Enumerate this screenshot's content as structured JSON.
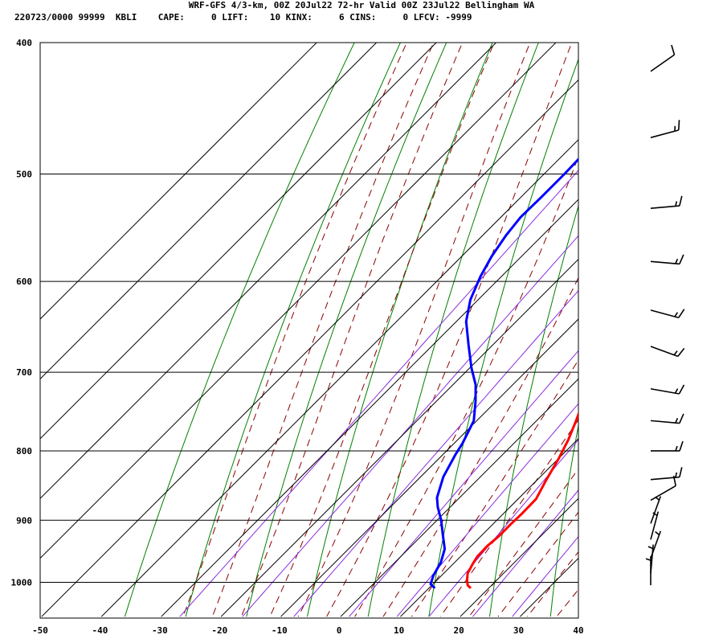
{
  "header": {
    "title_line1": "WRF-GFS 4/3-km, 00Z 20Jul22 72-hr Valid 00Z 23Jul22 Bellingham WA",
    "title_line2": "220723/0000 99999  KBLI    CAPE:     0 LIFT:    10 KINX:     6 CINS:     0 LFCV: -9999"
  },
  "chart_data": {
    "type": "line",
    "subtype": "skew-t log-p sounding",
    "x_axis": {
      "unit_hint": "temperature (C)",
      "ticks": [
        -50,
        -40,
        -30,
        -20,
        -10,
        0,
        10,
        20,
        30,
        40
      ],
      "range": [
        -50,
        40
      ]
    },
    "y_axis": {
      "scale": "log-pressure",
      "ticks": [
        400,
        500,
        600,
        700,
        800,
        900,
        1000
      ],
      "range": [
        1040,
        400
      ]
    },
    "grid": true,
    "colors": {
      "temperature": "#ff0000",
      "dewpoint": "#0000ff",
      "isotherms_and_isobars": "#000000",
      "dry_adiabats": "#008000",
      "moist_adiabats": "#8b0000",
      "mixing_ratio": "#8a2be2"
    },
    "series": [
      {
        "key": "temperature",
        "points": [
          [
            17.0,
            1010
          ],
          [
            16.0,
            1005
          ],
          [
            15.0,
            996
          ],
          [
            14.0,
            985
          ],
          [
            13.3,
            970
          ],
          [
            12.8,
            957
          ],
          [
            12.7,
            940
          ],
          [
            13.0,
            925
          ],
          [
            13.0,
            905
          ],
          [
            13.1,
            890
          ],
          [
            13.0,
            868
          ],
          [
            11.5,
            840
          ],
          [
            10.0,
            810
          ],
          [
            8.5,
            785
          ],
          [
            6.6,
            760
          ],
          [
            3.7,
            725
          ],
          [
            0.9,
            692
          ],
          [
            -2.0,
            660
          ],
          [
            -4.5,
            630
          ],
          [
            -7.4,
            600
          ],
          [
            -10.4,
            570
          ],
          [
            -13.3,
            543
          ],
          [
            -16.3,
            518
          ],
          [
            -19.7,
            493
          ],
          [
            -23.3,
            467
          ],
          [
            -26.8,
            442
          ],
          [
            -29.5,
            425
          ],
          [
            -30.0,
            419
          ]
        ]
      },
      {
        "key": "dewpoint",
        "points": [
          [
            11.0,
            1010
          ],
          [
            9.6,
            1003
          ],
          [
            8.6,
            988
          ],
          [
            7.7,
            967
          ],
          [
            6.1,
            945
          ],
          [
            3.1,
            920
          ],
          [
            0.7,
            900
          ],
          [
            -2.1,
            880
          ],
          [
            -3.8,
            866
          ],
          [
            -6.2,
            836
          ],
          [
            -7.9,
            805
          ],
          [
            -8.6,
            790
          ],
          [
            -10.5,
            760
          ],
          [
            -13.5,
            735
          ],
          [
            -16.2,
            715
          ],
          [
            -19.7,
            695
          ],
          [
            -24.1,
            668
          ],
          [
            -28.4,
            642
          ],
          [
            -31.3,
            619
          ],
          [
            -33.5,
            595
          ],
          [
            -35.0,
            575
          ],
          [
            -36.1,
            555
          ],
          [
            -36.7,
            538
          ],
          [
            -36.6,
            520
          ],
          [
            -36.6,
            500
          ],
          [
            -36.8,
            480
          ],
          [
            -37.2,
            460
          ],
          [
            -38.0,
            440
          ],
          [
            -38.2,
            420
          ]
        ]
      }
    ],
    "wind_barbs": [
      {
        "p": 420,
        "dir": 235,
        "kt": 10
      },
      {
        "p": 470,
        "dir": 255,
        "kt": 15
      },
      {
        "p": 530,
        "dir": 265,
        "kt": 15
      },
      {
        "p": 580,
        "dir": 275,
        "kt": 15
      },
      {
        "p": 630,
        "dir": 285,
        "kt": 15
      },
      {
        "p": 670,
        "dir": 290,
        "kt": 15
      },
      {
        "p": 720,
        "dir": 280,
        "kt": 15
      },
      {
        "p": 760,
        "dir": 275,
        "kt": 15
      },
      {
        "p": 800,
        "dir": 270,
        "kt": 15
      },
      {
        "p": 840,
        "dir": 265,
        "kt": 15
      },
      {
        "p": 870,
        "dir": 240,
        "kt": 10
      },
      {
        "p": 905,
        "dir": 200,
        "kt": 5
      },
      {
        "p": 930,
        "dir": 195,
        "kt": 5
      },
      {
        "p": 960,
        "dir": 200,
        "kt": 5
      },
      {
        "p": 985,
        "dir": 185,
        "kt": 5
      },
      {
        "p": 1005,
        "dir": 180,
        "kt": 5
      }
    ]
  }
}
